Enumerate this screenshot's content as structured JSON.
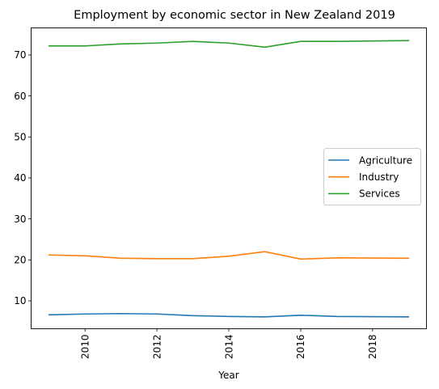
{
  "chart_data": {
    "type": "line",
    "title": "Employment by economic sector in New Zealand 2019",
    "xlabel": "Year",
    "ylabel": "",
    "x": [
      2009,
      2010,
      2011,
      2012,
      2013,
      2014,
      2015,
      2016,
      2017,
      2018,
      2019
    ],
    "xlim": [
      2008.5,
      2019.5
    ],
    "ylim": [
      3.2,
      76.6
    ],
    "xticks": [
      2010,
      2012,
      2014,
      2016,
      2018
    ],
    "xtick_labels": [
      "2010",
      "2012",
      "2014",
      "2016",
      "2018"
    ],
    "xtick_rotation": "vertical",
    "yticks": [
      10,
      20,
      30,
      40,
      50,
      60,
      70
    ],
    "ytick_labels": [
      "10",
      "20",
      "30",
      "40",
      "50",
      "60",
      "70"
    ],
    "grid": false,
    "legend_position": "center-right",
    "series": [
      {
        "name": "Agriculture",
        "color": "#1f77b4",
        "values": [
          6.6,
          6.8,
          6.9,
          6.8,
          6.4,
          6.2,
          6.1,
          6.5,
          6.2,
          6.15,
          6.1
        ]
      },
      {
        "name": "Industry",
        "color": "#ff7f0e",
        "values": [
          21.2,
          21.0,
          20.4,
          20.3,
          20.3,
          20.9,
          22.0,
          20.2,
          20.5,
          20.45,
          20.4
        ]
      },
      {
        "name": "Services",
        "color": "#2ca02c",
        "values": [
          72.2,
          72.2,
          72.7,
          72.9,
          73.3,
          72.9,
          71.9,
          73.3,
          73.3,
          73.4,
          73.5
        ]
      }
    ]
  }
}
